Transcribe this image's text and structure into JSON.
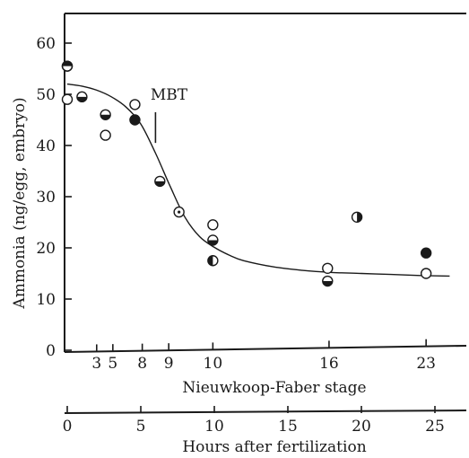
{
  "chart_data": {
    "type": "scatter",
    "ylabel": "Ammonia (ng/egg, embryo)",
    "xlabel": "Nieuwkoop-Faber stage",
    "x2label": "Hours after fertilization",
    "ylim": [
      0,
      60
    ],
    "yticks": [
      0,
      10,
      20,
      30,
      40,
      50,
      60
    ],
    "x_stage_ticks": [
      "3",
      "5",
      "8",
      "9",
      "10",
      "16",
      "23"
    ],
    "x_hours_ticks": [
      "0",
      "5",
      "10",
      "15",
      "20",
      "25"
    ],
    "xlim_hours": [
      0,
      26
    ],
    "annotation": {
      "text": "MBT",
      "x_hours": 6.8,
      "y": 50
    },
    "points": [
      {
        "x_hours": 0,
        "y": 55.5,
        "marker": "filled-half-top"
      },
      {
        "x_hours": 0,
        "y": 49,
        "marker": "open"
      },
      {
        "x_hours": 1,
        "y": 49.5,
        "marker": "half-bottom"
      },
      {
        "x_hours": 2.6,
        "y": 46,
        "marker": "half-bottom"
      },
      {
        "x_hours": 2.6,
        "y": 42,
        "marker": "open"
      },
      {
        "x_hours": 4.6,
        "y": 45,
        "marker": "filled"
      },
      {
        "x_hours": 4.6,
        "y": 48,
        "marker": "open"
      },
      {
        "x_hours": 6.3,
        "y": 33,
        "marker": "half-bottom"
      },
      {
        "x_hours": 7.6,
        "y": 27,
        "marker": "dot"
      },
      {
        "x_hours": 9.9,
        "y": 24.5,
        "marker": "open"
      },
      {
        "x_hours": 9.9,
        "y": 21.5,
        "marker": "half-bottom"
      },
      {
        "x_hours": 9.9,
        "y": 17.5,
        "marker": "half-left"
      },
      {
        "x_hours": 17.7,
        "y": 16,
        "marker": "open"
      },
      {
        "x_hours": 17.7,
        "y": 13.5,
        "marker": "half-bottom"
      },
      {
        "x_hours": 19.7,
        "y": 26,
        "marker": "half-right"
      },
      {
        "x_hours": 24.4,
        "y": 19,
        "marker": "filled"
      },
      {
        "x_hours": 24.4,
        "y": 15,
        "marker": "open"
      }
    ],
    "fit_curve": [
      [
        0,
        52
      ],
      [
        1,
        51.6
      ],
      [
        2,
        50.8
      ],
      [
        3,
        49.5
      ],
      [
        4,
        47.5
      ],
      [
        5,
        44.2
      ],
      [
        6,
        38.5
      ],
      [
        7,
        32
      ],
      [
        8,
        26
      ],
      [
        9,
        22.2
      ],
      [
        10,
        20.1
      ],
      [
        11,
        18.6
      ],
      [
        12,
        17.5
      ],
      [
        14,
        16.3
      ],
      [
        16,
        15.6
      ],
      [
        18,
        15.2
      ],
      [
        20,
        15
      ],
      [
        22,
        14.8
      ],
      [
        24,
        14.6
      ],
      [
        26,
        14.5
      ]
    ]
  }
}
